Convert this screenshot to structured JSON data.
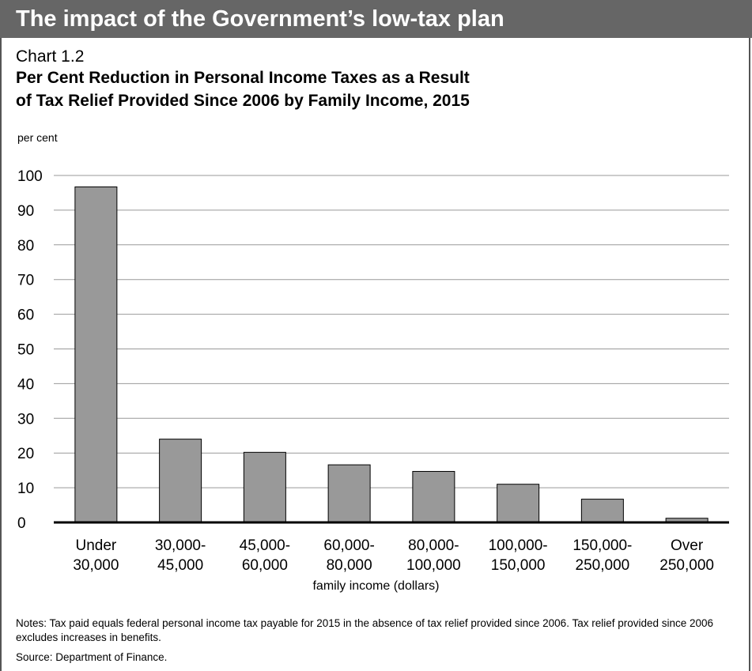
{
  "banner": {
    "title": "The impact of the Government’s low-tax plan"
  },
  "chart_number": "Chart 1.2",
  "chart_data": {
    "type": "bar",
    "title_lines": [
      "Per Cent Reduction in Personal Income Taxes as a Result",
      "of Tax Relief Provided Since 2006 by Family Income, 2015"
    ],
    "ylabel": "per cent",
    "xlabel": "family income (dollars)",
    "categories": [
      [
        "Under",
        "30,000"
      ],
      [
        "30,000-",
        "45,000"
      ],
      [
        "45,000-",
        "60,000"
      ],
      [
        "60,000-",
        "80,000"
      ],
      [
        "80,000-",
        "100,000"
      ],
      [
        "100,000-",
        "150,000"
      ],
      [
        "150,000-",
        "250,000"
      ],
      [
        "Over",
        "250,000"
      ]
    ],
    "values": [
      96.7,
      24,
      20.2,
      16.6,
      14.7,
      11,
      6.7,
      1.2
    ],
    "ylim": [
      0,
      100
    ],
    "yticks": [
      0,
      10,
      20,
      30,
      40,
      50,
      60,
      70,
      80,
      90,
      100
    ],
    "grid": true,
    "bar_color": "#999999",
    "bar_stroke": "#000000",
    "grid_color": "#999999"
  },
  "notes": "Notes: Tax paid equals federal personal income tax payable for 2015 in the absence of tax relief provided since 2006. Tax relief provided since 2006 excludes increases in benefits.",
  "source": "Source: Department of Finance."
}
